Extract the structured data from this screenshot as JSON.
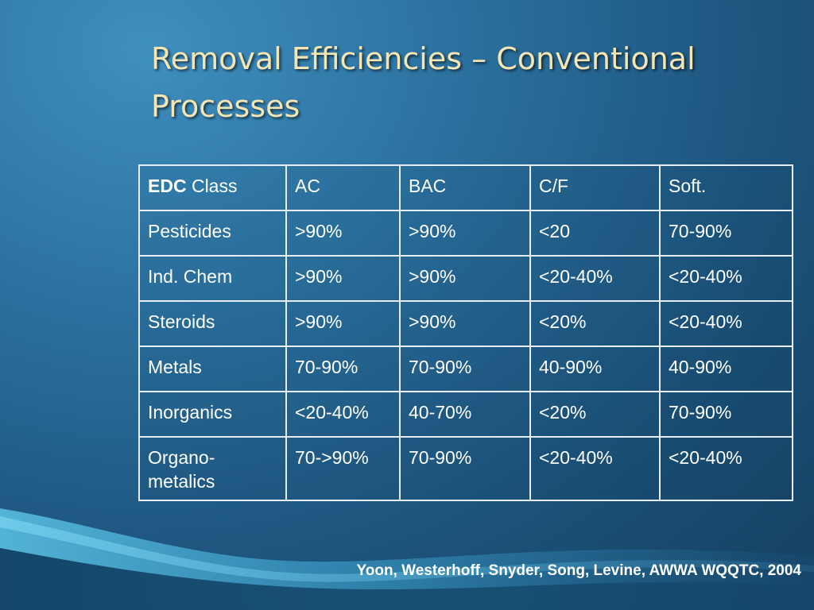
{
  "slide": {
    "title_line1": "Removal Efficiencies – Conventional",
    "title_line2": "Processes",
    "citation": "Yoon, Westerhoff, Snyder, Song, Levine, AWWA WQQTC, 2004"
  },
  "table": {
    "header": {
      "edc_bold": "EDC",
      "edc_rest": " Class",
      "cols": [
        "AC",
        "BAC",
        "C/F",
        "Soft."
      ]
    },
    "rows": [
      [
        "Pesticides",
        ">90%",
        ">90%",
        "<20",
        "70-90%"
      ],
      [
        "Ind. Chem",
        ">90%",
        ">90%",
        "<20-40%",
        "<20-40%"
      ],
      [
        "Steroids",
        ">90%",
        ">90%",
        "<20%",
        "<20-40%"
      ],
      [
        "Metals",
        "70-90%",
        "70-90%",
        "40-90%",
        "40-90%"
      ],
      [
        "Inorganics",
        "<20-40%",
        "40-70%",
        "<20%",
        "70-90%"
      ],
      [
        "Organo-metalics",
        "70->90%",
        "70-90%",
        "<20-40%",
        "<20-40%"
      ]
    ]
  },
  "colors": {
    "background": "#2a6f9d",
    "title": "#f4e6b4",
    "table_text": "#ffffff",
    "table_border": "#e6eef4",
    "wave": "#4fb3d9"
  }
}
